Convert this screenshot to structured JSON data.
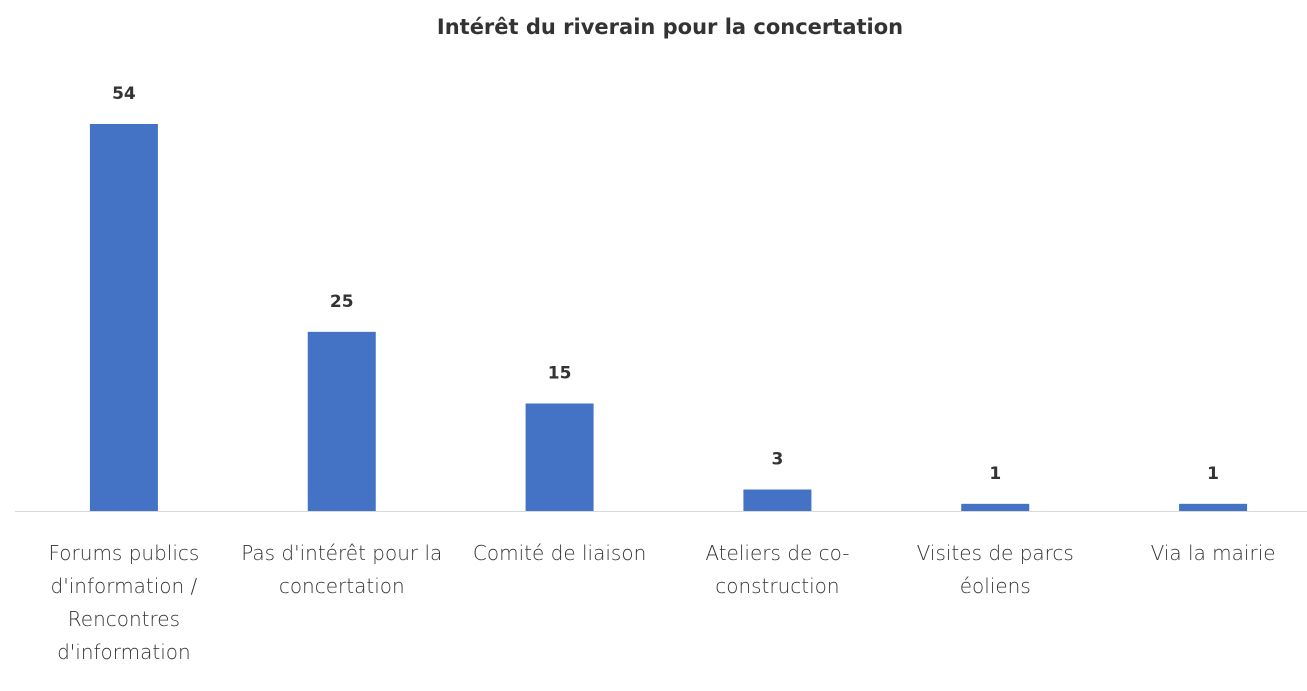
{
  "chart_data": {
    "type": "bar",
    "title": "Intérêt du riverain pour la concertation",
    "categories": [
      "Forums publics d'information / Rencontres d'information",
      "Pas d'intérêt pour la concertation",
      "Comité de liaison",
      "Ateliers de co-construction",
      "Visites de parcs éoliens",
      "Via la mairie"
    ],
    "values": [
      54,
      25,
      15,
      3,
      1,
      1
    ],
    "color": "#4472c4"
  }
}
